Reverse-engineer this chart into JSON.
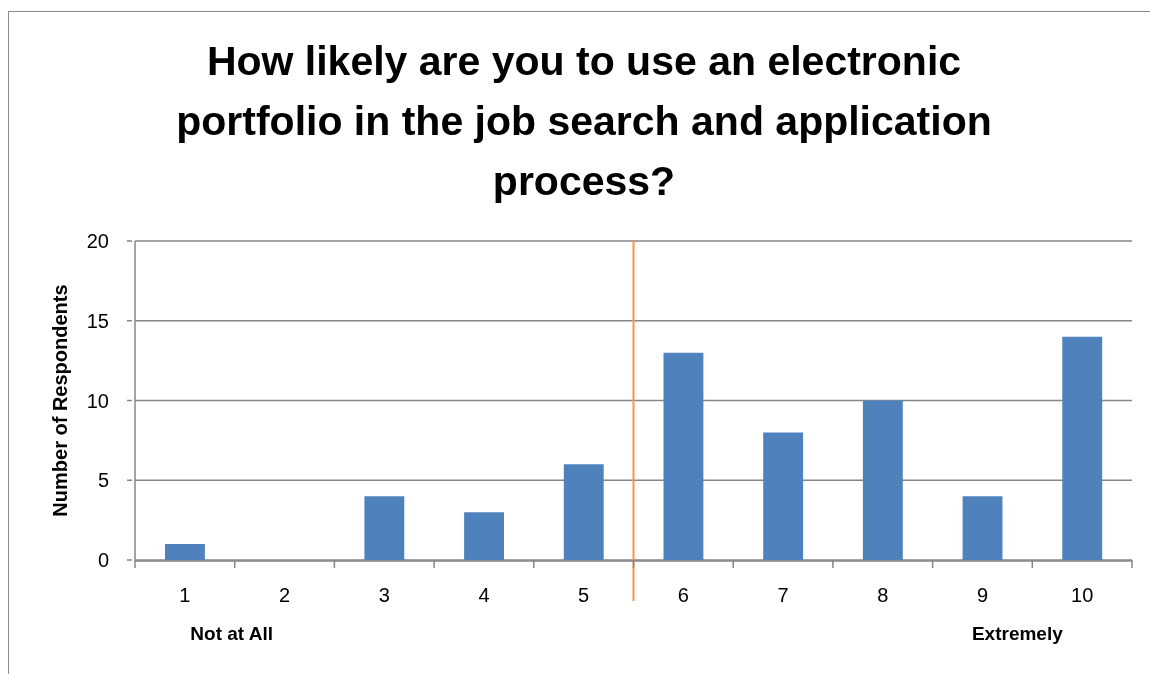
{
  "chart_data": {
    "type": "bar",
    "title": "How likely are you to use an electronic portfolio in the job search and application process?",
    "ylabel": "Number of Respondents",
    "x": [
      1,
      2,
      3,
      4,
      5,
      6,
      7,
      8,
      9,
      10
    ],
    "xlim": [
      0.5,
      10.5
    ],
    "xticks": [
      {
        "value": 0.5,
        "label": null
      },
      1,
      {
        "value": 1.5,
        "label": null
      },
      2,
      {
        "value": 2.5,
        "label": null
      },
      3,
      {
        "value": 3.5,
        "label": null
      },
      4,
      {
        "value": 4.5,
        "label": null
      },
      5,
      {
        "value": 5.5,
        "label": null
      },
      6,
      {
        "value": 6.5,
        "label": null
      },
      7,
      {
        "value": 7.5,
        "label": null
      },
      8,
      {
        "value": 8.5,
        "label": null
      },
      9,
      {
        "value": 9.5,
        "label": null
      },
      10,
      {
        "value": 10.5,
        "label": null
      }
    ],
    "values": [
      1,
      0,
      4,
      3,
      6,
      13,
      8,
      10,
      4,
      14
    ],
    "color": "#4f81bd",
    "ylim": [
      0,
      20
    ],
    "yticks": [
      0,
      5,
      10,
      15,
      20
    ],
    "grid": "y",
    "ref_lines": [
      {
        "axis": "x",
        "value": 5.5,
        "color": "#f79646"
      }
    ],
    "annotations": [
      "Not at All",
      "Extremely"
    ]
  }
}
